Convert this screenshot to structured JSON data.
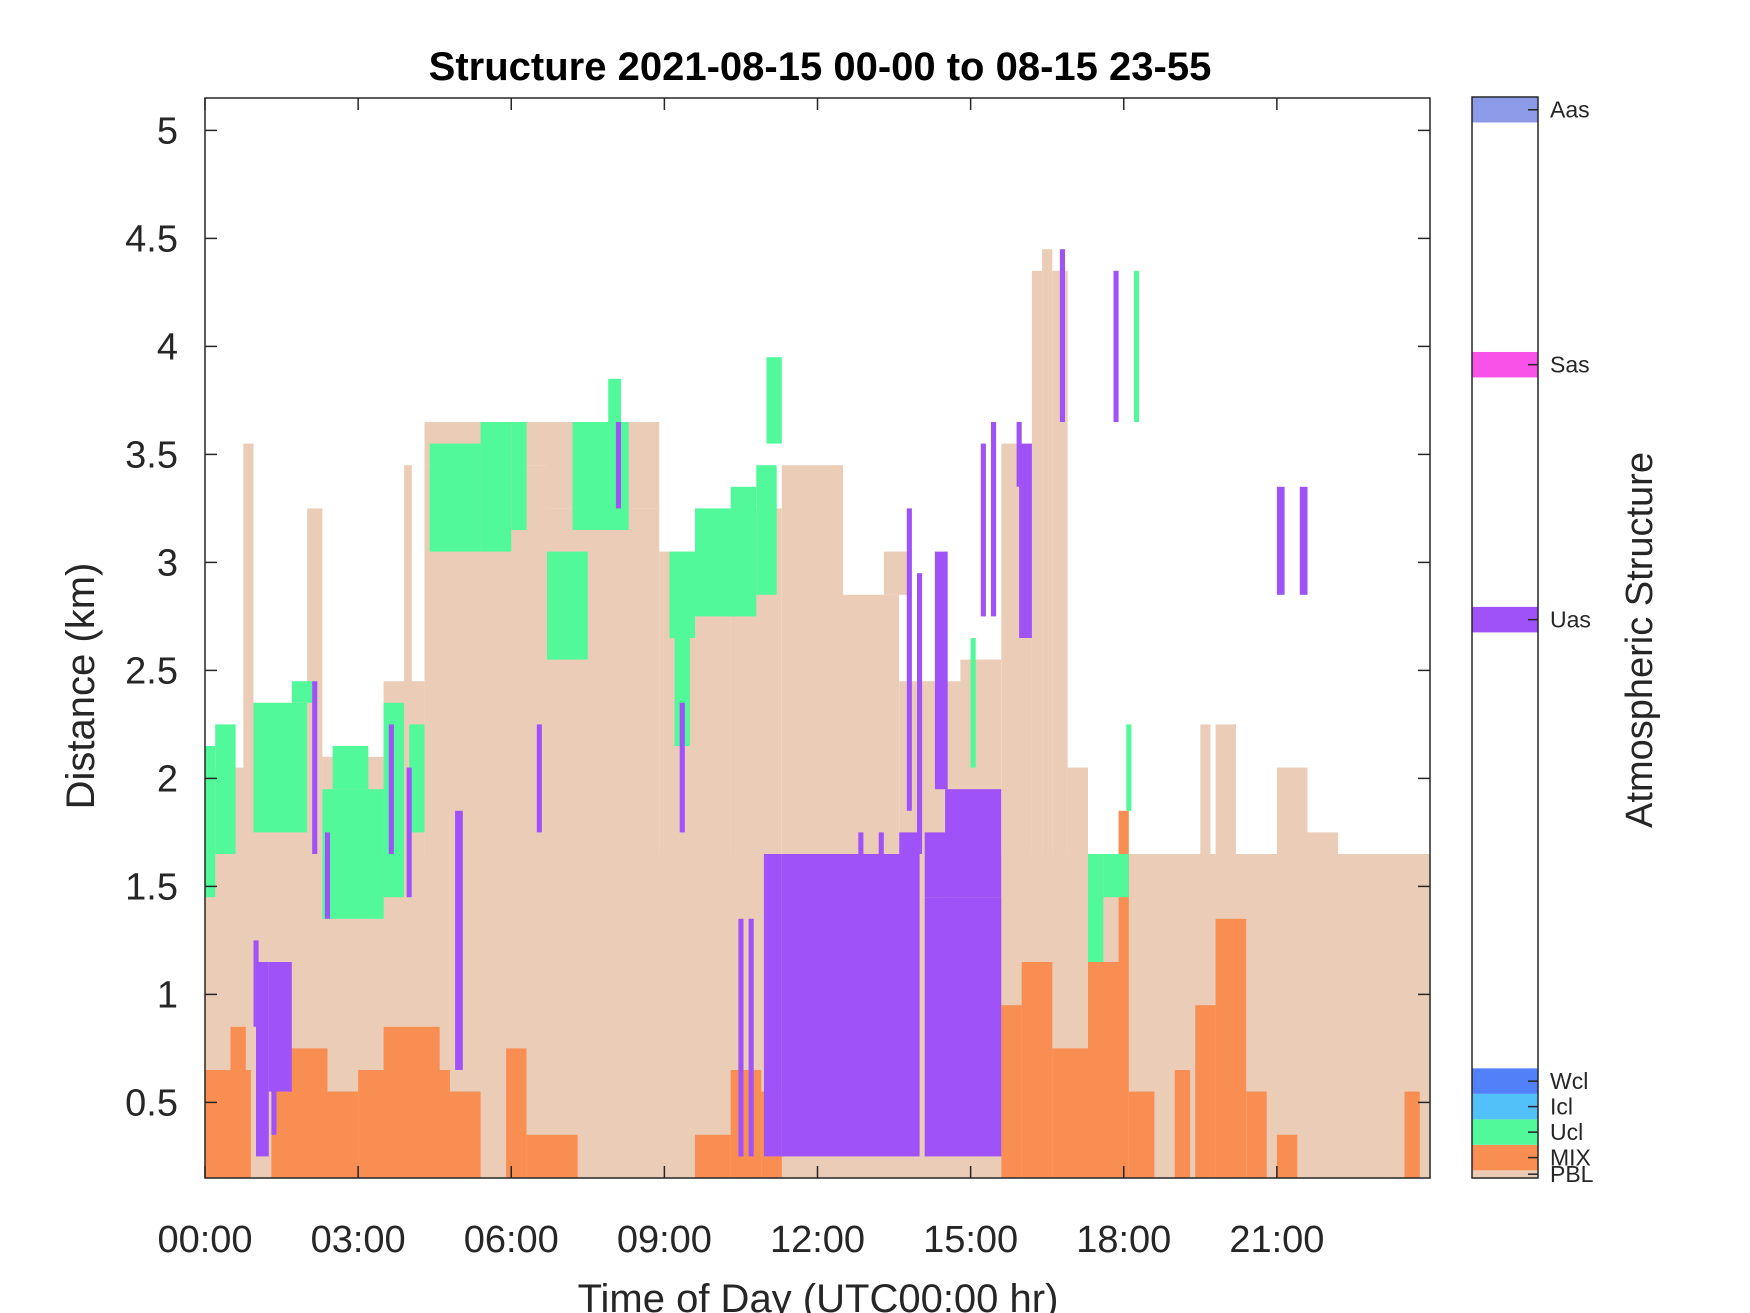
{
  "chart_data": {
    "type": "heatmap",
    "title": "Structure 2021-08-15 00-00 to 08-15 23-55",
    "xlabel": "Time of Day (UTC00:00 hr)",
    "ylabel": "Distance (km)",
    "colorbar_label": "Atmospheric Structure",
    "x_range_hours": [
      0,
      24
    ],
    "ylim": [
      0.15,
      5.15
    ],
    "x_tick_hours": [
      0,
      3,
      6,
      9,
      12,
      15,
      18,
      21
    ],
    "x_tick_labels": [
      "00:00",
      "03:00",
      "06:00",
      "09:00",
      "12:00",
      "15:00",
      "18:00",
      "21:00"
    ],
    "y_ticks": [
      0.5,
      1,
      1.5,
      2,
      2.5,
      3,
      3.5,
      4,
      4.5,
      5
    ],
    "y_tick_labels": [
      "0.5",
      "1",
      "1.5",
      "2",
      "2.5",
      "3",
      "3.5",
      "4",
      "4.5",
      "5"
    ],
    "grid": false,
    "classes": [
      {
        "label": "PBL",
        "color": "#EBCCB7",
        "cb_range": [
          0,
          0.15
        ]
      },
      {
        "label": "MIX",
        "color": "#F98E52",
        "cb_range": [
          0.15,
          0.65
        ]
      },
      {
        "label": "Ucl",
        "color": "#52F99A",
        "cb_range": [
          0.65,
          1.15
        ]
      },
      {
        "label": "Icl",
        "color": "#52C0F9",
        "cb_range": [
          1.15,
          1.65
        ]
      },
      {
        "label": "Wcl",
        "color": "#5280F9",
        "cb_range": [
          1.65,
          2.15
        ]
      },
      {
        "label": "Uas",
        "color": "#A052F9",
        "cb_range": [
          10.7,
          11.2
        ]
      },
      {
        "label": "Sas",
        "color": "#F952E9",
        "cb_range": [
          15.7,
          16.2
        ]
      },
      {
        "label": "Aas",
        "color": "#8C9AE8",
        "cb_range": [
          20.7,
          21.2
        ]
      }
    ],
    "colorbar_range": [
      0,
      21.2
    ],
    "series": [
      {
        "name": "PBL",
        "segments": [
          [
            0,
            24,
            0.15,
            1.65
          ],
          [
            0,
            1,
            1.65,
            2.05
          ],
          [
            0.75,
            0.95,
            2.0,
            3.55
          ],
          [
            1,
            2.1,
            1.65,
            2.35
          ],
          [
            2,
            2.3,
            1.65,
            3.25
          ],
          [
            2.3,
            3.5,
            1.55,
            2.1
          ],
          [
            3.5,
            4.3,
            1.55,
            2.45
          ],
          [
            3.9,
            4.05,
            2.4,
            3.45
          ],
          [
            4.3,
            6.7,
            1.65,
            3.45
          ],
          [
            4.3,
            6.7,
            3.45,
            3.65
          ],
          [
            6.7,
            8.9,
            1.65,
            3.25
          ],
          [
            6.7,
            8.9,
            3.25,
            3.65
          ],
          [
            8.9,
            10.3,
            1.65,
            3.05
          ],
          [
            10.3,
            11.3,
            1.65,
            3.25
          ],
          [
            11.3,
            12.5,
            1.65,
            3.45
          ],
          [
            12.5,
            13.6,
            1.65,
            2.85
          ],
          [
            13.3,
            13.8,
            2.85,
            3.05
          ],
          [
            13.6,
            14.8,
            1.65,
            2.45
          ],
          [
            14.8,
            15.6,
            1.65,
            2.55
          ],
          [
            15.6,
            16.2,
            1.65,
            3.55
          ],
          [
            16.2,
            16.4,
            1.65,
            4.35
          ],
          [
            16.4,
            16.6,
            1.65,
            4.45
          ],
          [
            16.6,
            16.9,
            1.65,
            4.35
          ],
          [
            16.9,
            17.3,
            1.65,
            2.05
          ],
          [
            17.3,
            18,
            1.65,
            1.65
          ],
          [
            19.5,
            19.7,
            1.65,
            2.25
          ],
          [
            19.8,
            20.2,
            1.65,
            2.25
          ],
          [
            21.0,
            21.6,
            1.65,
            2.05
          ],
          [
            21.6,
            22.2,
            1.65,
            1.75
          ],
          [
            22.2,
            24,
            1.65,
            1.65
          ]
        ]
      },
      {
        "name": "MIX",
        "segments": [
          [
            0,
            0.9,
            0.15,
            0.65
          ],
          [
            0.5,
            0.8,
            0.65,
            0.85
          ],
          [
            1.3,
            2.4,
            0.15,
            0.75
          ],
          [
            2.4,
            3.0,
            0.15,
            0.55
          ],
          [
            3.0,
            4.8,
            0.15,
            0.65
          ],
          [
            3.5,
            4.6,
            0.65,
            0.85
          ],
          [
            4.8,
            5.4,
            0.15,
            0.55
          ],
          [
            5.9,
            6.3,
            0.15,
            0.75
          ],
          [
            6.3,
            7.3,
            0.15,
            0.35
          ],
          [
            9.6,
            10.3,
            0.15,
            0.35
          ],
          [
            10.3,
            10.9,
            0.15,
            0.65
          ],
          [
            10.9,
            11.3,
            0.15,
            0.55
          ],
          [
            15.6,
            16.0,
            0.15,
            0.95
          ],
          [
            16.0,
            16.6,
            0.15,
            1.15
          ],
          [
            16.6,
            17.3,
            0.15,
            0.75
          ],
          [
            17.3,
            18.1,
            0.15,
            1.15
          ],
          [
            17.9,
            18.1,
            1.15,
            1.85
          ],
          [
            18.1,
            18.6,
            0.15,
            0.55
          ],
          [
            19.0,
            19.3,
            0.15,
            0.65
          ],
          [
            19.4,
            19.8,
            0.15,
            0.95
          ],
          [
            19.8,
            20.4,
            0.15,
            1.35
          ],
          [
            20.4,
            20.8,
            0.15,
            0.55
          ],
          [
            21.0,
            21.4,
            0.15,
            0.35
          ],
          [
            23.5,
            23.8,
            0.15,
            0.55
          ]
        ]
      },
      {
        "name": "Ucl",
        "segments": [
          [
            0,
            0.2,
            1.45,
            2.15
          ],
          [
            0.2,
            0.6,
            1.65,
            2.25
          ],
          [
            0.95,
            2.0,
            1.75,
            2.35
          ],
          [
            1.7,
            2.1,
            2.35,
            2.45
          ],
          [
            2.3,
            3.5,
            1.35,
            1.95
          ],
          [
            2.5,
            3.2,
            1.95,
            2.15
          ],
          [
            3.5,
            3.9,
            1.45,
            2.35
          ],
          [
            4.0,
            4.3,
            1.75,
            2.25
          ],
          [
            4.4,
            5.4,
            3.05,
            3.55
          ],
          [
            5.4,
            6.0,
            3.05,
            3.65
          ],
          [
            6.0,
            6.3,
            3.15,
            3.65
          ],
          [
            6.7,
            7.5,
            2.55,
            3.05
          ],
          [
            7.2,
            8.3,
            3.15,
            3.65
          ],
          [
            7.9,
            8.15,
            3.65,
            3.85
          ],
          [
            9.1,
            9.6,
            2.65,
            3.05
          ],
          [
            9.2,
            9.5,
            2.15,
            2.65
          ],
          [
            9.6,
            10.4,
            2.75,
            3.25
          ],
          [
            10.3,
            10.8,
            2.75,
            3.35
          ],
          [
            10.8,
            11.2,
            2.85,
            3.45
          ],
          [
            11.0,
            11.3,
            3.55,
            3.95
          ],
          [
            15.0,
            15.1,
            2.05,
            2.65
          ],
          [
            17.3,
            17.6,
            1.15,
            1.65
          ],
          [
            17.6,
            18.1,
            1.45,
            1.65
          ],
          [
            18.05,
            18.15,
            1.85,
            2.25
          ],
          [
            18.2,
            18.3,
            3.65,
            4.35
          ]
        ]
      },
      {
        "name": "Uas",
        "segments": [
          [
            11.3,
            14.0,
            0.25,
            1.65
          ],
          [
            14.1,
            15.6,
            0.25,
            1.45
          ],
          [
            14.1,
            14.6,
            1.45,
            1.75
          ],
          [
            14.5,
            15.6,
            1.45,
            1.95
          ],
          [
            10.45,
            10.55,
            0.25,
            1.35
          ],
          [
            10.65,
            10.75,
            0.25,
            1.35
          ],
          [
            10.95,
            11.3,
            0.25,
            1.65
          ],
          [
            13.6,
            14.0,
            1.65,
            1.75
          ],
          [
            12.8,
            12.9,
            1.65,
            1.75
          ],
          [
            13.2,
            13.3,
            1.65,
            1.75
          ],
          [
            1.0,
            1.25,
            0.25,
            1.15
          ],
          [
            1.25,
            1.7,
            0.55,
            1.15
          ],
          [
            0.95,
            1.05,
            0.85,
            1.25
          ],
          [
            1.3,
            1.4,
            0.35,
            0.55
          ],
          [
            2.1,
            2.2,
            1.65,
            2.45
          ],
          [
            2.35,
            2.45,
            1.35,
            1.75
          ],
          [
            3.6,
            3.7,
            1.65,
            2.25
          ],
          [
            3.95,
            4.05,
            1.45,
            2.05
          ],
          [
            4.9,
            5.05,
            0.65,
            1.85
          ],
          [
            6.5,
            6.6,
            1.75,
            2.25
          ],
          [
            8.05,
            8.15,
            3.25,
            3.65
          ],
          [
            9.3,
            9.4,
            1.75,
            2.35
          ],
          [
            13.75,
            13.85,
            1.85,
            3.25
          ],
          [
            13.95,
            14.05,
            1.65,
            2.95
          ],
          [
            14.3,
            14.55,
            1.95,
            3.05
          ],
          [
            15.2,
            15.3,
            2.75,
            3.55
          ],
          [
            15.4,
            15.5,
            2.75,
            3.65
          ],
          [
            15.95,
            16.2,
            2.65,
            3.55
          ],
          [
            15.9,
            16.0,
            3.35,
            3.65
          ],
          [
            16.75,
            16.85,
            3.65,
            4.45
          ],
          [
            17.8,
            17.9,
            3.65,
            4.35
          ],
          [
            21.0,
            21.15,
            2.85,
            3.35
          ],
          [
            21.45,
            21.6,
            2.85,
            3.35
          ]
        ]
      }
    ]
  }
}
